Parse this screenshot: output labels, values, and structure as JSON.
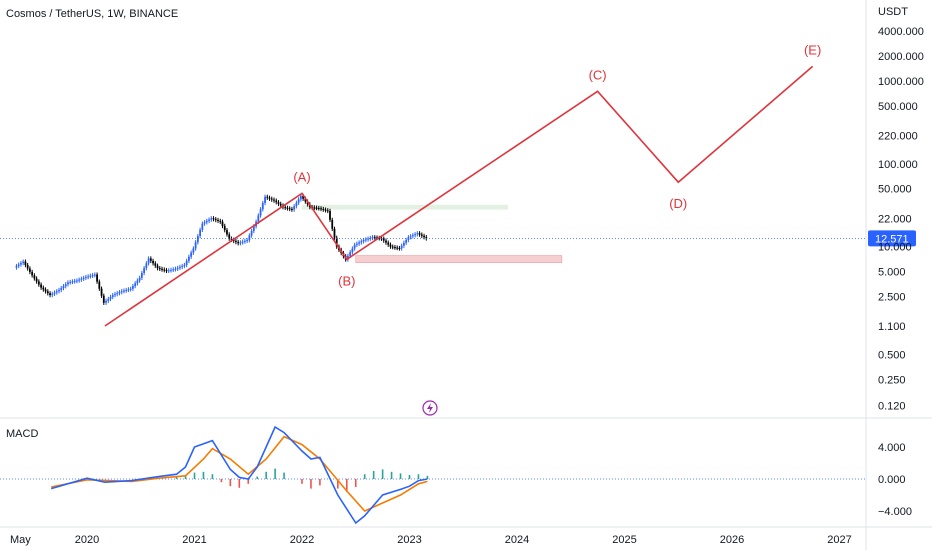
{
  "header": {
    "title": "Cosmos / TetherUS, 1W, BINANCE"
  },
  "price_axis": {
    "currency": "USDT",
    "ticks": [
      "4000.000",
      "2000.000",
      "1000.000",
      "500.000",
      "220.000",
      "100.000",
      "50.000",
      "22.000",
      "10.000",
      "5.000",
      "2.500",
      "1.100",
      "0.500",
      "0.250",
      "0.120"
    ],
    "last_price": "12.571"
  },
  "macd_panel": {
    "label": "MACD",
    "ticks": [
      "4.000",
      "0.000",
      "−4.000"
    ]
  },
  "time_axis": {
    "ticks": [
      "May",
      "2020",
      "2021",
      "2022",
      "2023",
      "2024",
      "2025",
      "2026",
      "2027"
    ]
  },
  "colors": {
    "up": "#2962ff",
    "down": "#000000",
    "wave": "#e0343c",
    "macd_line": "#2962ff",
    "signal_line": "#f57c00",
    "hist_up": "#26a69a",
    "hist_down": "#ef5350",
    "last_price_bg": "#2962ff"
  },
  "chart_data": {
    "type": "line",
    "title": "Cosmos / TetherUS, 1W, BINANCE",
    "y_scale": "log",
    "ylabel": "USDT",
    "ylim": [
      0.1,
      5000
    ],
    "wave_labels": [
      "(A)",
      "(B)",
      "(C)",
      "(D)",
      "(E)"
    ],
    "price_path": [
      {
        "date": "2019-05",
        "price": 5.6
      },
      {
        "date": "2019-06",
        "price": 6.6
      },
      {
        "date": "2019-07",
        "price": 4.5
      },
      {
        "date": "2019-08",
        "price": 3.2
      },
      {
        "date": "2019-09",
        "price": 2.6
      },
      {
        "date": "2019-10",
        "price": 3.0
      },
      {
        "date": "2019-11",
        "price": 3.7
      },
      {
        "date": "2019-12",
        "price": 3.9
      },
      {
        "date": "2020-01",
        "price": 4.3
      },
      {
        "date": "2020-02",
        "price": 4.6
      },
      {
        "date": "2020-03",
        "price": 2.1
      },
      {
        "date": "2020-04",
        "price": 2.6
      },
      {
        "date": "2020-05",
        "price": 2.9
      },
      {
        "date": "2020-06",
        "price": 3.1
      },
      {
        "date": "2020-07",
        "price": 4.2
      },
      {
        "date": "2020-08",
        "price": 7.2
      },
      {
        "date": "2020-09",
        "price": 5.5
      },
      {
        "date": "2020-10",
        "price": 5.1
      },
      {
        "date": "2020-11",
        "price": 5.4
      },
      {
        "date": "2020-12",
        "price": 6.0
      },
      {
        "date": "2021-01",
        "price": 9.5
      },
      {
        "date": "2021-02",
        "price": 19.0
      },
      {
        "date": "2021-03",
        "price": 22.0
      },
      {
        "date": "2021-04",
        "price": 20.0
      },
      {
        "date": "2021-05",
        "price": 12.5
      },
      {
        "date": "2021-06",
        "price": 11.0
      },
      {
        "date": "2021-07",
        "price": 12.0
      },
      {
        "date": "2021-08",
        "price": 20.0
      },
      {
        "date": "2021-09",
        "price": 40.0
      },
      {
        "date": "2021-10",
        "price": 36.0
      },
      {
        "date": "2021-11",
        "price": 30.0
      },
      {
        "date": "2021-12",
        "price": 28.0
      },
      {
        "date": "2022-01",
        "price": 41.0
      },
      {
        "date": "2022-02",
        "price": 30.0
      },
      {
        "date": "2022-03",
        "price": 29.0
      },
      {
        "date": "2022-04",
        "price": 27.0
      },
      {
        "date": "2022-05",
        "price": 10.0
      },
      {
        "date": "2022-06",
        "price": 7.0
      },
      {
        "date": "2022-07",
        "price": 10.5
      },
      {
        "date": "2022-08",
        "price": 12.0
      },
      {
        "date": "2022-09",
        "price": 13.0
      },
      {
        "date": "2022-10",
        "price": 12.5
      },
      {
        "date": "2022-11",
        "price": 10.0
      },
      {
        "date": "2022-12",
        "price": 9.5
      },
      {
        "date": "2023-01",
        "price": 13.0
      },
      {
        "date": "2023-02",
        "price": 14.5
      },
      {
        "date": "2023-03",
        "price": 12.571
      }
    ],
    "wave_path": [
      {
        "date": "2020-03",
        "price": 1.1,
        "label": ""
      },
      {
        "date": "2022-01",
        "price": 44.0,
        "label": "(A)"
      },
      {
        "date": "2022-06",
        "price": 7.0,
        "label": "(B)"
      },
      {
        "date": "2024-10",
        "price": 750.0,
        "label": "(C)"
      },
      {
        "date": "2025-07",
        "price": 60.0,
        "label": "(D)"
      },
      {
        "date": "2026-10",
        "price": 1500.0,
        "label": "(E)"
      }
    ],
    "zones": [
      {
        "name": "resistance",
        "from": "2022-01",
        "to": "2023-12",
        "low": 28.0,
        "high": 32.0,
        "color": "#e3f1e2"
      },
      {
        "name": "support",
        "from": "2022-07",
        "to": "2024-06",
        "low": 6.4,
        "high": 7.8,
        "color": "#f6cfd1"
      }
    ],
    "last_price": 12.571,
    "macd": {
      "ylim": [
        -6,
        7
      ],
      "macd": [
        {
          "date": "2019-09",
          "v": -1.2
        },
        {
          "date": "2020-01",
          "v": 0.1
        },
        {
          "date": "2020-03",
          "v": -0.4
        },
        {
          "date": "2020-06",
          "v": -0.2
        },
        {
          "date": "2020-09",
          "v": 0.3
        },
        {
          "date": "2020-11",
          "v": 0.6
        },
        {
          "date": "2020-12",
          "v": 1.5
        },
        {
          "date": "2021-01",
          "v": 4.0
        },
        {
          "date": "2021-03",
          "v": 4.8
        },
        {
          "date": "2021-05",
          "v": 1.2
        },
        {
          "date": "2021-06",
          "v": 0.2
        },
        {
          "date": "2021-07",
          "v": 0.0
        },
        {
          "date": "2021-08",
          "v": 1.5
        },
        {
          "date": "2021-10",
          "v": 6.5
        },
        {
          "date": "2021-11",
          "v": 5.8
        },
        {
          "date": "2022-01",
          "v": 3.5
        },
        {
          "date": "2022-02",
          "v": 2.5
        },
        {
          "date": "2022-03",
          "v": 2.7
        },
        {
          "date": "2022-05",
          "v": -2.0
        },
        {
          "date": "2022-07",
          "v": -5.5
        },
        {
          "date": "2022-08",
          "v": -4.6
        },
        {
          "date": "2022-10",
          "v": -2.0
        },
        {
          "date": "2022-12",
          "v": -1.3
        },
        {
          "date": "2023-01",
          "v": -0.9
        },
        {
          "date": "2023-02",
          "v": -0.2
        },
        {
          "date": "2023-03",
          "v": 0.0
        }
      ],
      "signal": [
        {
          "date": "2019-09",
          "v": -1.0
        },
        {
          "date": "2020-01",
          "v": -0.1
        },
        {
          "date": "2020-06",
          "v": -0.3
        },
        {
          "date": "2020-09",
          "v": 0.1
        },
        {
          "date": "2020-12",
          "v": 0.4
        },
        {
          "date": "2021-02",
          "v": 2.5
        },
        {
          "date": "2021-03",
          "v": 3.8
        },
        {
          "date": "2021-05",
          "v": 2.5
        },
        {
          "date": "2021-07",
          "v": 0.6
        },
        {
          "date": "2021-09",
          "v": 2.5
        },
        {
          "date": "2021-11",
          "v": 5.3
        },
        {
          "date": "2022-01",
          "v": 4.3
        },
        {
          "date": "2022-03",
          "v": 2.5
        },
        {
          "date": "2022-06",
          "v": -1.5
        },
        {
          "date": "2022-08",
          "v": -4.0
        },
        {
          "date": "2022-10",
          "v": -3.0
        },
        {
          "date": "2022-12",
          "v": -2.0
        },
        {
          "date": "2023-02",
          "v": -0.6
        },
        {
          "date": "2023-03",
          "v": -0.3
        }
      ],
      "histogram": [
        {
          "date": "2020-08",
          "v": 0.2
        },
        {
          "date": "2020-11",
          "v": 0.3
        },
        {
          "date": "2020-12",
          "v": 0.5
        },
        {
          "date": "2021-01",
          "v": 0.8
        },
        {
          "date": "2021-02",
          "v": 0.9
        },
        {
          "date": "2021-03",
          "v": 0.6
        },
        {
          "date": "2021-04",
          "v": -0.4
        },
        {
          "date": "2021-05",
          "v": -0.9
        },
        {
          "date": "2021-06",
          "v": -1.1
        },
        {
          "date": "2021-07",
          "v": -0.6
        },
        {
          "date": "2021-08",
          "v": 0.3
        },
        {
          "date": "2021-09",
          "v": 0.9
        },
        {
          "date": "2021-10",
          "v": 1.3
        },
        {
          "date": "2021-11",
          "v": 0.8
        },
        {
          "date": "2022-01",
          "v": -0.6
        },
        {
          "date": "2022-02",
          "v": -1.2
        },
        {
          "date": "2022-03",
          "v": -0.8
        },
        {
          "date": "2022-05",
          "v": -1.2
        },
        {
          "date": "2022-06",
          "v": -1.6
        },
        {
          "date": "2022-07",
          "v": -1.0
        },
        {
          "date": "2022-08",
          "v": 0.6
        },
        {
          "date": "2022-09",
          "v": 1.0
        },
        {
          "date": "2022-10",
          "v": 1.2
        },
        {
          "date": "2022-11",
          "v": 0.9
        },
        {
          "date": "2022-12",
          "v": 0.7
        },
        {
          "date": "2023-01",
          "v": 0.5
        },
        {
          "date": "2023-02",
          "v": 0.6
        },
        {
          "date": "2023-03",
          "v": 0.4
        }
      ]
    }
  }
}
